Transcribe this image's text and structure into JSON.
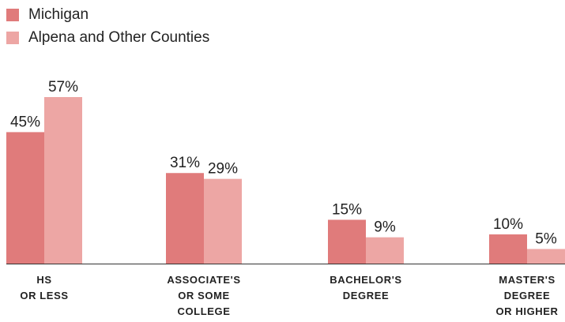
{
  "chart_data": {
    "type": "bar",
    "categories": [
      [
        "HS",
        "OR LESS"
      ],
      [
        "ASSOCIATE'S",
        "OR SOME",
        "COLLEGE"
      ],
      [
        "BACHELOR'S",
        "DEGREE"
      ],
      [
        "MASTER'S",
        "DEGREE",
        "OR HIGHER"
      ]
    ],
    "series": [
      {
        "name": "Michigan",
        "values": [
          45,
          31,
          15,
          10
        ],
        "labels": [
          "45%",
          "31%",
          "15%",
          "10%"
        ],
        "color": "#e07b7b"
      },
      {
        "name": "Alpena and Other Counties",
        "values": [
          57,
          29,
          9,
          5
        ],
        "labels": [
          "57%",
          "29%",
          "9%",
          "5%"
        ],
        "color": "#eda6a4"
      }
    ],
    "ylim": [
      0,
      60
    ],
    "title": "",
    "xlabel": "",
    "ylabel": "",
    "grid": false,
    "legend_position": "top-left",
    "axis_color": "#333333"
  }
}
